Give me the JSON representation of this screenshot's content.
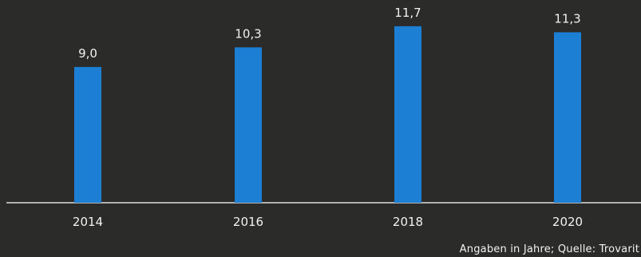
{
  "chart_data": {
    "type": "bar",
    "categories": [
      "2014",
      "2016",
      "2018",
      "2020"
    ],
    "values": [
      9.0,
      10.3,
      11.7,
      11.3
    ],
    "value_labels": [
      "9,0",
      "10,3",
      "11,7",
      "11,3"
    ],
    "ylim": [
      0,
      12
    ],
    "grid": false,
    "legend": "none",
    "colors": {
      "bar": "#1c7fd3",
      "background": "#2b2c2a",
      "axis": "#dcdcdc",
      "text": "#f2f2f2"
    }
  },
  "footer": {
    "source": "Angaben in Jahre; Quelle: Trovarit"
  }
}
